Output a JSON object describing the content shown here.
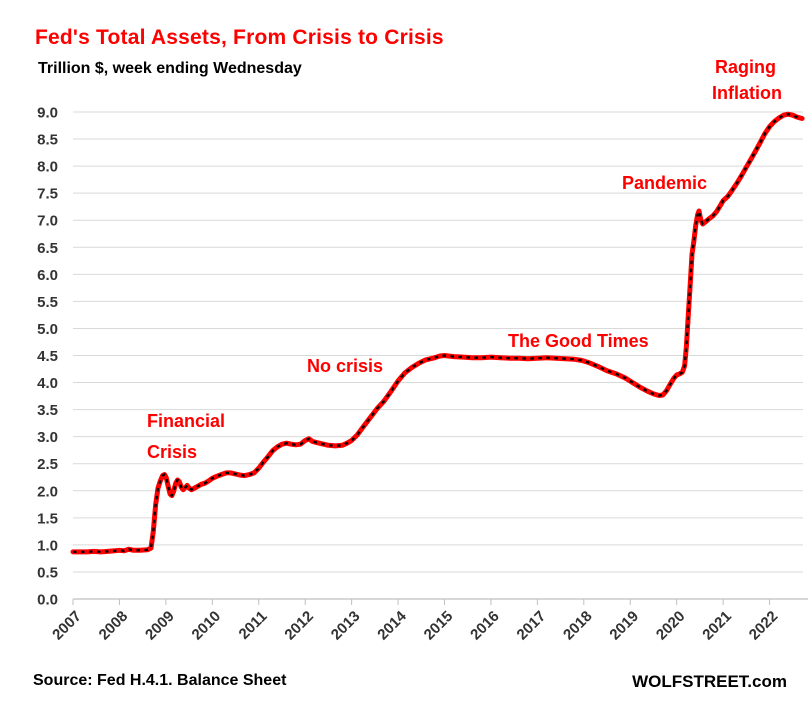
{
  "header": {
    "title": "Fed's Total Assets, From Crisis to Crisis",
    "subtitle": "Trillion $, week ending Wednesday"
  },
  "footer": {
    "source": "Source: Fed H.4.1. Balance Sheet",
    "brand": "WOLFSTREET.com"
  },
  "colors": {
    "accent_red": "#ff0000",
    "line_red": "#ff0000",
    "line_black": "#000000",
    "grid": "#d9d9d9",
    "axis_line": "#bfbfbf",
    "axis_text": "#333333"
  },
  "annotations": [
    {
      "label": "Financial Crisis",
      "lines": [
        "Financial",
        "Crisis"
      ]
    },
    {
      "label": "No crisis",
      "lines": [
        "No crisis"
      ]
    },
    {
      "label": "The Good Times",
      "lines": [
        "The Good Times"
      ]
    },
    {
      "label": "Pandemic",
      "lines": [
        "Pandemic"
      ]
    },
    {
      "label": "Raging Inflation",
      "lines": [
        "Raging",
        "Inflation"
      ]
    }
  ],
  "chart_data": {
    "type": "line",
    "title": "Fed's Total Assets, From Crisis to Crisis",
    "subtitle": "Trillion $, week ending Wednesday",
    "xlabel": "",
    "ylabel": "Trillion $",
    "xlim": [
      2007,
      2022.72
    ],
    "ylim": [
      0,
      9.0
    ],
    "grid": "horizontal",
    "x_ticks": [
      2007,
      2008,
      2009,
      2010,
      2011,
      2012,
      2013,
      2014,
      2015,
      2016,
      2017,
      2018,
      2019,
      2020,
      2021,
      2022
    ],
    "y_ticks": [
      0.0,
      0.5,
      1.0,
      1.5,
      2.0,
      2.5,
      3.0,
      3.5,
      4.0,
      4.5,
      5.0,
      5.5,
      6.0,
      6.5,
      7.0,
      7.5,
      8.0,
      8.5,
      9.0
    ],
    "series": [
      {
        "name": "Fed total assets, trillion $ (weekly, ending Wednesday)",
        "points": [
          [
            2007.0,
            0.87
          ],
          [
            2007.15,
            0.87
          ],
          [
            2007.3,
            0.87
          ],
          [
            2007.45,
            0.88
          ],
          [
            2007.6,
            0.87
          ],
          [
            2007.75,
            0.88
          ],
          [
            2007.9,
            0.89
          ],
          [
            2008.0,
            0.9
          ],
          [
            2008.1,
            0.89
          ],
          [
            2008.2,
            0.92
          ],
          [
            2008.3,
            0.9
          ],
          [
            2008.45,
            0.9
          ],
          [
            2008.6,
            0.91
          ],
          [
            2008.68,
            0.94
          ],
          [
            2008.73,
            1.25
          ],
          [
            2008.78,
            1.75
          ],
          [
            2008.83,
            2.05
          ],
          [
            2008.88,
            2.18
          ],
          [
            2008.93,
            2.28
          ],
          [
            2008.97,
            2.3
          ],
          [
            2009.01,
            2.24
          ],
          [
            2009.05,
            2.08
          ],
          [
            2009.09,
            1.94
          ],
          [
            2009.13,
            1.91
          ],
          [
            2009.17,
            2.0
          ],
          [
            2009.21,
            2.13
          ],
          [
            2009.25,
            2.2
          ],
          [
            2009.29,
            2.17
          ],
          [
            2009.33,
            2.07
          ],
          [
            2009.37,
            2.02
          ],
          [
            2009.42,
            2.06
          ],
          [
            2009.46,
            2.1
          ],
          [
            2009.5,
            2.05
          ],
          [
            2009.55,
            2.02
          ],
          [
            2009.6,
            2.04
          ],
          [
            2009.68,
            2.08
          ],
          [
            2009.76,
            2.12
          ],
          [
            2009.84,
            2.14
          ],
          [
            2009.92,
            2.18
          ],
          [
            2010.0,
            2.23
          ],
          [
            2010.1,
            2.27
          ],
          [
            2010.2,
            2.3
          ],
          [
            2010.3,
            2.33
          ],
          [
            2010.4,
            2.33
          ],
          [
            2010.5,
            2.31
          ],
          [
            2010.6,
            2.29
          ],
          [
            2010.7,
            2.28
          ],
          [
            2010.8,
            2.3
          ],
          [
            2010.9,
            2.33
          ],
          [
            2011.0,
            2.42
          ],
          [
            2011.1,
            2.53
          ],
          [
            2011.2,
            2.63
          ],
          [
            2011.3,
            2.74
          ],
          [
            2011.4,
            2.81
          ],
          [
            2011.5,
            2.86
          ],
          [
            2011.6,
            2.88
          ],
          [
            2011.7,
            2.86
          ],
          [
            2011.8,
            2.85
          ],
          [
            2011.9,
            2.86
          ],
          [
            2012.0,
            2.93
          ],
          [
            2012.08,
            2.96
          ],
          [
            2012.16,
            2.91
          ],
          [
            2012.25,
            2.89
          ],
          [
            2012.35,
            2.87
          ],
          [
            2012.5,
            2.84
          ],
          [
            2012.65,
            2.83
          ],
          [
            2012.8,
            2.84
          ],
          [
            2012.9,
            2.88
          ],
          [
            2013.0,
            2.93
          ],
          [
            2013.12,
            3.03
          ],
          [
            2013.25,
            3.18
          ],
          [
            2013.4,
            3.35
          ],
          [
            2013.55,
            3.52
          ],
          [
            2013.7,
            3.66
          ],
          [
            2013.85,
            3.84
          ],
          [
            2014.0,
            4.03
          ],
          [
            2014.15,
            4.18
          ],
          [
            2014.3,
            4.28
          ],
          [
            2014.45,
            4.36
          ],
          [
            2014.6,
            4.42
          ],
          [
            2014.75,
            4.45
          ],
          [
            2014.9,
            4.49
          ],
          [
            2015.0,
            4.5
          ],
          [
            2015.2,
            4.48
          ],
          [
            2015.4,
            4.47
          ],
          [
            2015.6,
            4.46
          ],
          [
            2015.8,
            4.46
          ],
          [
            2016.0,
            4.47
          ],
          [
            2016.2,
            4.46
          ],
          [
            2016.4,
            4.45
          ],
          [
            2016.6,
            4.45
          ],
          [
            2016.8,
            4.44
          ],
          [
            2017.0,
            4.45
          ],
          [
            2017.2,
            4.46
          ],
          [
            2017.4,
            4.45
          ],
          [
            2017.6,
            4.44
          ],
          [
            2017.8,
            4.43
          ],
          [
            2017.95,
            4.41
          ],
          [
            2018.1,
            4.37
          ],
          [
            2018.3,
            4.3
          ],
          [
            2018.5,
            4.22
          ],
          [
            2018.7,
            4.16
          ],
          [
            2018.9,
            4.08
          ],
          [
            2019.05,
            4.0
          ],
          [
            2019.2,
            3.92
          ],
          [
            2019.35,
            3.85
          ],
          [
            2019.5,
            3.79
          ],
          [
            2019.62,
            3.76
          ],
          [
            2019.7,
            3.77
          ],
          [
            2019.78,
            3.85
          ],
          [
            2019.86,
            3.97
          ],
          [
            2019.94,
            4.08
          ],
          [
            2020.0,
            4.14
          ],
          [
            2020.06,
            4.16
          ],
          [
            2020.12,
            4.19
          ],
          [
            2020.17,
            4.31
          ],
          [
            2020.21,
            4.67
          ],
          [
            2020.25,
            5.25
          ],
          [
            2020.29,
            5.81
          ],
          [
            2020.33,
            6.37
          ],
          [
            2020.37,
            6.62
          ],
          [
            2020.41,
            6.9
          ],
          [
            2020.45,
            7.1
          ],
          [
            2020.48,
            7.17
          ],
          [
            2020.52,
            7.01
          ],
          [
            2020.56,
            6.93
          ],
          [
            2020.62,
            6.97
          ],
          [
            2020.7,
            7.03
          ],
          [
            2020.78,
            7.08
          ],
          [
            2020.86,
            7.16
          ],
          [
            2020.94,
            7.27
          ],
          [
            2021.0,
            7.36
          ],
          [
            2021.1,
            7.44
          ],
          [
            2021.2,
            7.56
          ],
          [
            2021.3,
            7.69
          ],
          [
            2021.4,
            7.83
          ],
          [
            2021.5,
            7.98
          ],
          [
            2021.6,
            8.13
          ],
          [
            2021.7,
            8.28
          ],
          [
            2021.8,
            8.44
          ],
          [
            2021.9,
            8.6
          ],
          [
            2022.0,
            8.73
          ],
          [
            2022.1,
            8.82
          ],
          [
            2022.2,
            8.89
          ],
          [
            2022.3,
            8.94
          ],
          [
            2022.4,
            8.96
          ],
          [
            2022.5,
            8.94
          ],
          [
            2022.58,
            8.91
          ],
          [
            2022.66,
            8.89
          ],
          [
            2022.7,
            8.88
          ]
        ]
      }
    ]
  }
}
